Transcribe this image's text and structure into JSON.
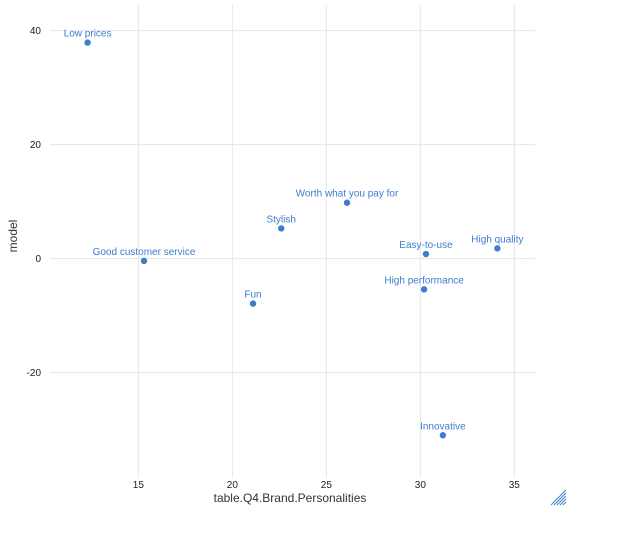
{
  "chart_data": {
    "type": "scatter",
    "title": "",
    "xlabel": "table.Q4.Brand.Personalities",
    "ylabel": "model",
    "xlim": [
      10.3,
      36.1
    ],
    "ylim": [
      -38.5,
      44.5
    ],
    "x_ticks": [
      15,
      20,
      25,
      30,
      35
    ],
    "y_ticks": [
      -20,
      0,
      20,
      40
    ],
    "grid": true,
    "legend": "none",
    "point_color": "#3e7dcc",
    "label_color": "#3e7dcc",
    "points": [
      {
        "label": "Low prices",
        "x": 12.3,
        "y": 37.9
      },
      {
        "label": "Good customer service",
        "x": 15.3,
        "y": -0.4
      },
      {
        "label": "Fun",
        "x": 21.1,
        "y": -7.9
      },
      {
        "label": "Stylish",
        "x": 22.6,
        "y": 5.3
      },
      {
        "label": "Worth what you pay for",
        "x": 26.1,
        "y": 9.8
      },
      {
        "label": "Easy-to-use",
        "x": 30.3,
        "y": 0.8
      },
      {
        "label": "High performance",
        "x": 30.2,
        "y": -5.4
      },
      {
        "label": "High quality",
        "x": 34.1,
        "y": 1.8
      },
      {
        "label": "Innovative",
        "x": 31.2,
        "y": -31.0
      }
    ]
  }
}
